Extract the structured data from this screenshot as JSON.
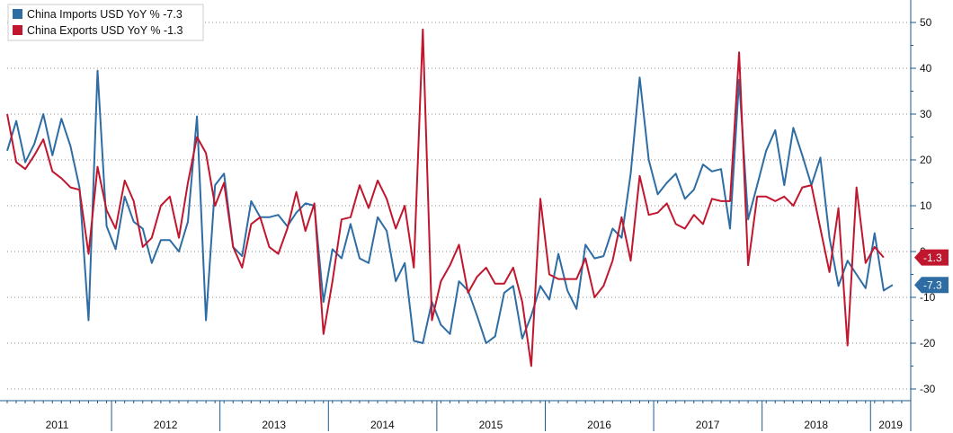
{
  "chart_data": {
    "type": "line",
    "x_start": "2011-01",
    "x_end": "2019-12",
    "x_tick_labels": [
      "2011",
      "2012",
      "2013",
      "2014",
      "2015",
      "2016",
      "2017",
      "2018",
      "2019"
    ],
    "y_tick_labels": [
      "50",
      "40",
      "30",
      "20",
      "10",
      "0",
      "-10",
      "-20",
      "-30"
    ],
    "ylim": [
      -32,
      55
    ],
    "y_axis_position": "right",
    "grid": "dotted horizontal",
    "legend_position": "top-left",
    "series": [
      {
        "name": "China Imports USD YoY %",
        "color": "#2e6da4",
        "last_value_label": "-7.3",
        "values": [
          22,
          28.5,
          19.5,
          23.5,
          30,
          21,
          29,
          23,
          14,
          -15,
          39.5,
          5.5,
          0.5,
          12,
          6.5,
          5,
          -2.5,
          2.5,
          2.5,
          0,
          6.5,
          29.5,
          -15,
          14.5,
          17,
          1,
          -1,
          11,
          7.5,
          7.5,
          8,
          5.5,
          8.5,
          10.5,
          10,
          -11,
          0.5,
          -1.5,
          6,
          -1.5,
          -2.5,
          7.5,
          4.5,
          -6.5,
          -2.5,
          -19.5,
          -20,
          -11,
          -16,
          -18,
          -6.5,
          -8.5,
          -14,
          -20,
          -18.5,
          -9,
          -7.5,
          -19,
          -14,
          -7.5,
          -10.5,
          -0.5,
          -8.5,
          -12.5,
          1.5,
          -1.5,
          -1,
          5,
          3,
          17,
          38,
          20,
          12.5,
          15,
          17,
          11.5,
          13.5,
          19,
          17.5,
          18,
          5,
          37.5,
          7,
          14.5,
          22,
          26.5,
          14.5,
          27,
          21,
          14.5,
          20.5,
          3,
          -7.5,
          -2,
          -5,
          -8,
          4,
          -8.5,
          -7.3
        ]
      },
      {
        "name": "China Exports USD YoY %",
        "color": "#c0172e",
        "last_value_label": "-1.3",
        "values": [
          30,
          19.5,
          18,
          21,
          24.5,
          17.5,
          16,
          14,
          13.5,
          -0.5,
          18.5,
          9,
          5,
          15.5,
          11,
          1,
          3,
          10,
          12,
          3,
          15,
          25,
          21.5,
          10,
          15,
          1,
          -3.5,
          6,
          7.5,
          1,
          -0.5,
          5,
          13,
          4.5,
          10.5,
          -18,
          -6.5,
          7,
          7.5,
          14.5,
          9.5,
          15.5,
          11.5,
          5,
          10,
          -3.5,
          48.5,
          -15,
          -6.5,
          -3,
          1.5,
          -9,
          -5.5,
          -3.5,
          -7,
          -7,
          -3.5,
          -11,
          -25,
          11.5,
          -5,
          -6,
          -6,
          -6,
          -1.5,
          -10,
          -7.5,
          -2,
          7.5,
          -2,
          16.5,
          8,
          8.5,
          10.5,
          6,
          5,
          8,
          6,
          11.5,
          11,
          11,
          43.5,
          -3,
          12,
          12,
          11,
          12,
          10,
          14,
          14.5,
          5,
          -4.5,
          9.5,
          -20.5,
          14,
          -2.5,
          1,
          -1.3
        ]
      }
    ],
    "value_tags": [
      {
        "text": "-1.3",
        "color": "#c0172e",
        "value": -1.3
      },
      {
        "text": "-7.3",
        "color": "#2e6da4",
        "value": -7.3
      }
    ]
  }
}
